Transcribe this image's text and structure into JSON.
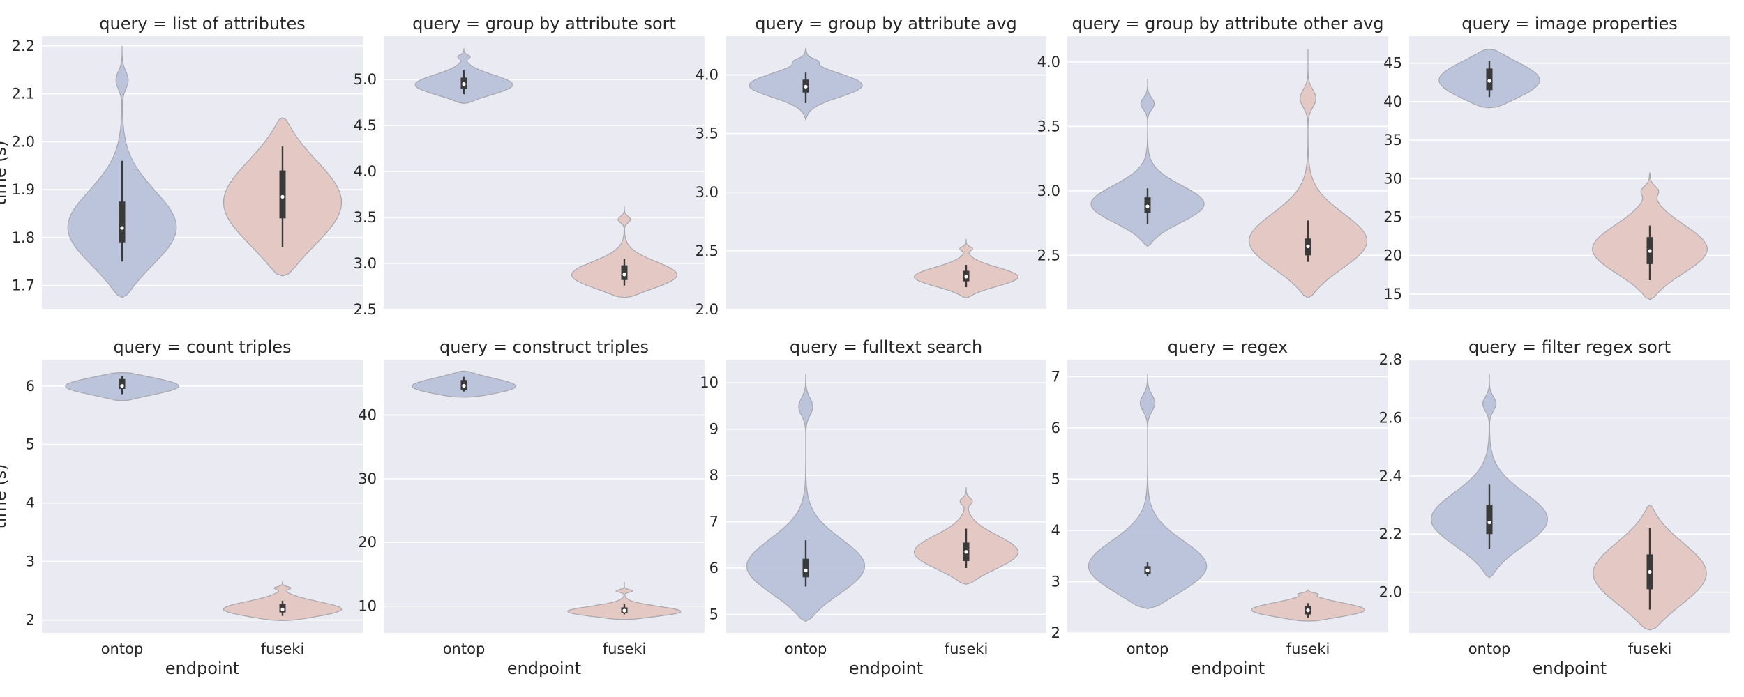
{
  "x_axis_label": "endpoint",
  "y_axis_label": "time (s)",
  "categories": [
    "ontop",
    "fuseki"
  ],
  "colors": {
    "ontop": "#b9c2d9",
    "fuseki": "#e3c6c0",
    "panel_bg": "#eaeaf2",
    "grid": "#ffffff",
    "box": "#3a3a3a",
    "outline": "#a6a6ad"
  },
  "chart_data": [
    {
      "type": "violin",
      "title": "query = list of attributes",
      "yticks": [
        1.7,
        1.8,
        1.9,
        2.0,
        2.1,
        2.2
      ],
      "ylim": [
        1.65,
        2.22
      ],
      "violins": [
        {
          "category": "ontop",
          "min": 1.75,
          "q1": 1.79,
          "median": 1.82,
          "q3": 1.875,
          "max": 1.96,
          "kde_low": 1.675,
          "kde_high": 2.2,
          "peak": 1.81,
          "width": 0.69,
          "upper_bump": 2.13
        },
        {
          "category": "fuseki",
          "min": 1.78,
          "q1": 1.84,
          "median": 1.885,
          "q3": 1.94,
          "max": 1.99,
          "kde_low": 1.72,
          "kde_high": 2.05,
          "peak": 1.87,
          "width": 0.75
        }
      ]
    },
    {
      "type": "violin",
      "title": "query = group by attribute sort",
      "yticks": [
        2.5,
        3.0,
        3.5,
        4.0,
        4.5,
        5.0
      ],
      "ylim": [
        2.5,
        5.47
      ],
      "violins": [
        {
          "category": "ontop",
          "min": 4.84,
          "q1": 4.9,
          "median": 4.95,
          "q3": 5.02,
          "max": 5.1,
          "kde_low": 4.74,
          "kde_high": 5.34,
          "peak": 4.93,
          "width": 0.62,
          "upper_bump": 5.25
        },
        {
          "category": "fuseki",
          "min": 2.76,
          "q1": 2.82,
          "median": 2.88,
          "q3": 2.98,
          "max": 3.05,
          "kde_low": 2.63,
          "kde_high": 3.62,
          "peak": 2.85,
          "width": 0.67,
          "upper_bump": 3.48
        }
      ]
    },
    {
      "type": "violin",
      "title": "query = group by attribute avg",
      "yticks": [
        2.0,
        2.5,
        3.0,
        3.5,
        4.0
      ],
      "ylim": [
        2.0,
        4.33
      ],
      "violins": [
        {
          "category": "ontop",
          "min": 3.76,
          "q1": 3.85,
          "median": 3.9,
          "q3": 3.96,
          "max": 4.02,
          "kde_low": 3.62,
          "kde_high": 4.23,
          "peak": 3.91,
          "width": 0.72,
          "upper_bump": 4.12
        },
        {
          "category": "fuseki",
          "min": 2.19,
          "q1": 2.24,
          "median": 2.28,
          "q3": 2.33,
          "max": 2.38,
          "kde_low": 2.1,
          "kde_high": 2.6,
          "peak": 2.27,
          "width": 0.66,
          "upper_bump": 2.52
        }
      ]
    },
    {
      "type": "violin",
      "title": "query = group by attribute other avg",
      "yticks": [
        2.5,
        3.0,
        3.5,
        4.0
      ],
      "ylim": [
        2.08,
        4.2
      ],
      "violins": [
        {
          "category": "ontop",
          "min": 2.74,
          "q1": 2.83,
          "median": 2.88,
          "q3": 2.95,
          "max": 3.02,
          "kde_low": 2.57,
          "kde_high": 3.87,
          "peak": 2.88,
          "width": 0.72,
          "upper_bump": 3.68
        },
        {
          "category": "fuseki",
          "min": 2.45,
          "q1": 2.5,
          "median": 2.57,
          "q3": 2.63,
          "max": 2.77,
          "kde_low": 2.17,
          "kde_high": 4.1,
          "peak": 2.58,
          "width": 0.75,
          "upper_bump": 3.72
        }
      ]
    },
    {
      "type": "violin",
      "title": "query = image properties",
      "yticks": [
        15,
        20,
        25,
        30,
        35,
        40,
        45
      ],
      "ylim": [
        13,
        48.5
      ],
      "violins": [
        {
          "category": "ontop",
          "min": 40.6,
          "q1": 41.5,
          "median": 42.7,
          "q3": 44.3,
          "max": 45.3,
          "kde_low": 39.2,
          "kde_high": 46.8,
          "peak": 42.7,
          "width": 0.64
        },
        {
          "category": "fuseki",
          "min": 16.8,
          "q1": 18.9,
          "median": 20.6,
          "q3": 22.4,
          "max": 23.9,
          "kde_low": 14.3,
          "kde_high": 30.8,
          "peak": 20.6,
          "width": 0.73,
          "upper_bump": 28.5
        }
      ]
    },
    {
      "type": "violin",
      "title": "query = count triples",
      "yticks": [
        2,
        3,
        4,
        5,
        6
      ],
      "ylim": [
        1.78,
        6.45
      ],
      "violins": [
        {
          "category": "ontop",
          "min": 5.86,
          "q1": 5.95,
          "median": 6.0,
          "q3": 6.12,
          "max": 6.17,
          "kde_low": 5.75,
          "kde_high": 6.23,
          "peak": 6.0,
          "width": 0.72
        },
        {
          "category": "fuseki",
          "min": 2.07,
          "q1": 2.13,
          "median": 2.18,
          "q3": 2.28,
          "max": 2.33,
          "kde_low": 1.99,
          "kde_high": 2.66,
          "peak": 2.16,
          "width": 0.75,
          "upper_bump": 2.55
        }
      ]
    },
    {
      "type": "violin",
      "title": "query = construct triples",
      "yticks": [
        10,
        20,
        30,
        40
      ],
      "ylim": [
        5.8,
        48.7
      ],
      "violins": [
        {
          "category": "ontop",
          "min": 43.7,
          "q1": 44.0,
          "median": 44.6,
          "q3": 45.5,
          "max": 46.0,
          "kde_low": 42.8,
          "kde_high": 46.9,
          "peak": 44.4,
          "width": 0.66
        },
        {
          "category": "fuseki",
          "min": 8.7,
          "q1": 8.9,
          "median": 9.3,
          "q3": 9.8,
          "max": 10.3,
          "kde_low": 7.9,
          "kde_high": 13.8,
          "peak": 9.0,
          "width": 0.72,
          "upper_bump": 12.4
        }
      ]
    },
    {
      "type": "violin",
      "title": "query = fulltext search",
      "yticks": [
        5,
        6,
        7,
        8,
        9,
        10
      ],
      "ylim": [
        4.6,
        10.5
      ],
      "violins": [
        {
          "category": "ontop",
          "min": 5.6,
          "q1": 5.8,
          "median": 5.95,
          "q3": 6.2,
          "max": 6.6,
          "kde_low": 4.85,
          "kde_high": 10.2,
          "peak": 5.95,
          "width": 0.75,
          "upper_bump": 9.5
        },
        {
          "category": "fuseki",
          "min": 6.0,
          "q1": 6.15,
          "median": 6.35,
          "q3": 6.55,
          "max": 6.85,
          "kde_low": 5.65,
          "kde_high": 7.75,
          "peak": 6.3,
          "width": 0.66,
          "upper_bump": 7.45
        }
      ]
    },
    {
      "type": "violin",
      "title": "query = regex",
      "yticks": [
        2,
        3,
        4,
        5,
        6,
        7
      ],
      "ylim": [
        2.0,
        7.33
      ],
      "violins": [
        {
          "category": "ontop",
          "min": 3.1,
          "q1": 3.15,
          "median": 3.22,
          "q3": 3.3,
          "max": 3.38,
          "kde_low": 2.47,
          "kde_high": 7.05,
          "peak": 3.2,
          "width": 0.75,
          "upper_bump": 6.5
        },
        {
          "category": "fuseki",
          "min": 2.3,
          "q1": 2.36,
          "median": 2.44,
          "q3": 2.52,
          "max": 2.58,
          "kde_low": 2.23,
          "kde_high": 2.84,
          "peak": 2.43,
          "width": 0.72,
          "upper_bump": 2.76
        }
      ]
    },
    {
      "type": "violin",
      "title": "query = filter regex sort",
      "yticks": [
        2.0,
        2.2,
        2.4,
        2.6,
        2.8
      ],
      "ylim": [
        1.86,
        2.8
      ],
      "violins": [
        {
          "category": "ontop",
          "min": 2.15,
          "q1": 2.2,
          "median": 2.24,
          "q3": 2.3,
          "max": 2.37,
          "kde_low": 2.05,
          "kde_high": 2.75,
          "peak": 2.24,
          "width": 0.74,
          "upper_bump": 2.65
        },
        {
          "category": "fuseki",
          "min": 1.94,
          "q1": 2.01,
          "median": 2.07,
          "q3": 2.13,
          "max": 2.22,
          "kde_low": 1.87,
          "kde_high": 2.3,
          "peak": 2.06,
          "width": 0.72
        }
      ]
    }
  ]
}
